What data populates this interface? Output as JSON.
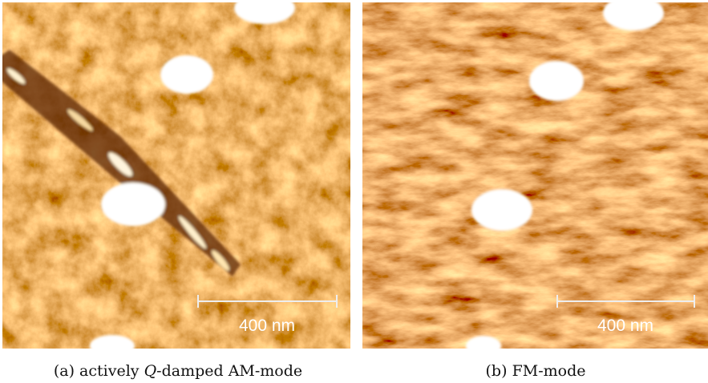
{
  "panels": [
    {
      "scale_bar_label": "400 nm",
      "label": "(a)",
      "caption_before": "actively",
      "caption_italic": "Q",
      "caption_after": "-damped AM-mode"
    },
    {
      "scale_bar_label": "400 nm",
      "label": "(b)",
      "caption": "FM-mode"
    }
  ]
}
